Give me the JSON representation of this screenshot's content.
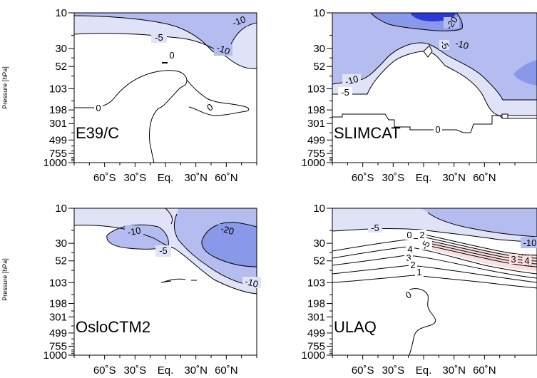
{
  "chart_data": [
    {
      "type": "contour",
      "panel": "E39/C",
      "ylabel": "Pressure [hPa]",
      "y_ticks": [
        "10",
        "30",
        "52",
        "103",
        "198",
        "301",
        "499",
        "755",
        "1000"
      ],
      "x_ticks": [
        "60˚S",
        "30˚S",
        "Eq.",
        "30˚N",
        "60˚N"
      ],
      "contour_labels": [
        "-10",
        "-5",
        "-10",
        "0",
        "0",
        "0"
      ],
      "fill_colors": [
        "#e0e3f7",
        "#b5bdf0"
      ]
    },
    {
      "type": "contour",
      "panel": "SLIMCAT",
      "ylabel": "",
      "y_ticks": [
        "10",
        "30",
        "52",
        "103",
        "198",
        "301",
        "499",
        "755",
        "1000"
      ],
      "x_ticks": [
        "60˚S",
        "30˚S",
        "Eq.",
        "30˚N",
        "60˚N"
      ],
      "contour_labels": [
        "-20",
        "-10",
        "-5",
        "-10",
        "-5",
        "0"
      ],
      "fill_colors": [
        "#e0e3f7",
        "#b5bdf0",
        "#8a98ea",
        "#2d3ad8"
      ]
    },
    {
      "type": "contour",
      "panel": "OsloCTM2",
      "ylabel": "Pressure [hPa]",
      "y_ticks": [
        "10",
        "30",
        "52",
        "103",
        "198",
        "301",
        "499",
        "755",
        "1000"
      ],
      "x_ticks": [
        "60˚S",
        "30˚S",
        "Eq.",
        "30˚N",
        "60˚N"
      ],
      "contour_labels": [
        "-10",
        "-20",
        "-5",
        "-10"
      ],
      "fill_colors": [
        "#e0e3f7",
        "#b5bdf0",
        "#8a98ea"
      ]
    },
    {
      "type": "contour",
      "panel": "ULAQ",
      "ylabel": "",
      "y_ticks": [
        "10",
        "30",
        "52",
        "103",
        "198",
        "301",
        "499",
        "755",
        "1000"
      ],
      "x_ticks": [
        "60˚S",
        "30˚S",
        "Eq.",
        "30˚N",
        "60˚N"
      ],
      "contour_labels": [
        "-5",
        "0",
        "2",
        "-5",
        "-10",
        "4",
        "3",
        "2",
        "1",
        "3",
        "4",
        "0"
      ],
      "fill_colors": [
        "#e0e3f7",
        "#b5bdf0",
        "#f9dfe0"
      ]
    }
  ]
}
